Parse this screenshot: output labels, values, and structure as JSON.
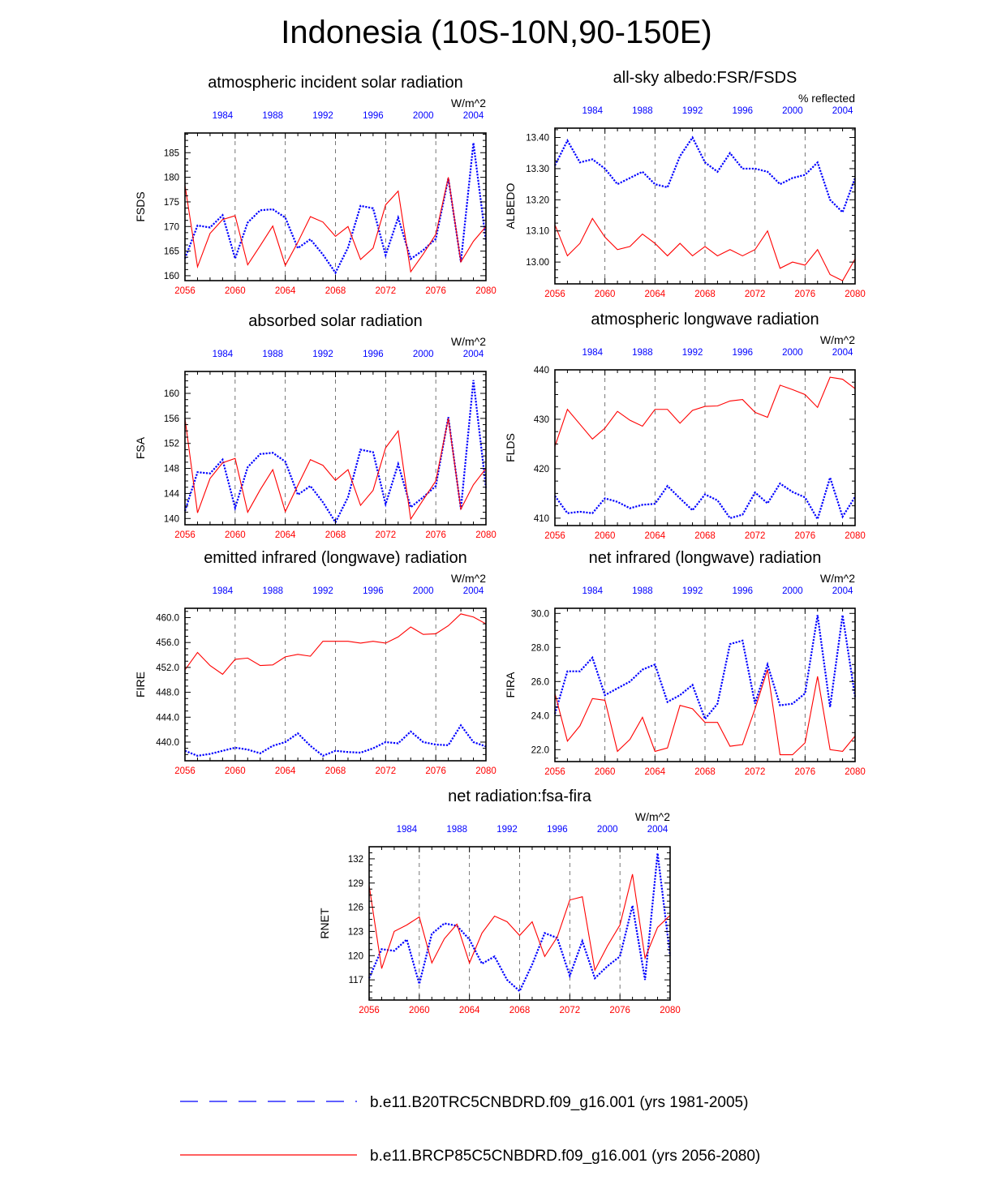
{
  "page": {
    "title": "Indonesia (10S-10N,90-150E)"
  },
  "colors": {
    "case1": "#0000ff",
    "case2": "#ff0000",
    "axis": "#000000",
    "grid": "#555555"
  },
  "legend": {
    "case1_label": "b.e11.B20TRC5CNBDRD.f09_g16.001 (yrs 1981-2005)",
    "case2_label": "b.e11.BRCP85C5CNBDRD.f09_g16.001 (yrs 2056-2080)"
  },
  "chart_data": [
    {
      "type": "line",
      "id": "fsds",
      "title": "atmospheric incident solar radiation",
      "ylabel": "FSDS",
      "units": "W/m^2",
      "ylim": [
        159,
        189
      ],
      "yticks": [
        160,
        165,
        170,
        175,
        180,
        185
      ],
      "ydecimals": 0,
      "xlim": [
        2056,
        2080
      ],
      "x_bottom_ticks": [
        "2056",
        "2060",
        "2064",
        "2068",
        "2072",
        "2076",
        "2080"
      ],
      "x_top_ticks": [
        "1984",
        "1988",
        "1992",
        "1996",
        "2000",
        "2004"
      ],
      "series": [
        {
          "name": "b.e11.B20TRC5CNBDRD.f09_g16.001 (yrs 1981-2005)",
          "years": "1981-2005",
          "values": [
            163.5,
            170.2,
            169.8,
            172.3,
            163.5,
            170.8,
            173.3,
            173.5,
            171.8,
            165.6,
            167.4,
            164.3,
            160.6,
            165.7,
            174.2,
            173.7,
            164.2,
            171.8,
            163.4,
            165.2,
            167.5,
            179.8,
            162.8,
            187.0,
            167.0
          ]
        },
        {
          "name": "b.e11.BRCP85C5CNBDRD.f09_g16.001 (yrs 2056-2080)",
          "years": "2056-2080",
          "values": [
            178.4,
            161.8,
            168.6,
            171.4,
            172.2,
            162.2,
            166.1,
            170.1,
            162.1,
            166.8,
            172.0,
            170.9,
            168.0,
            170.0,
            163.3,
            165.6,
            174.4,
            177.2,
            160.8,
            164.4,
            168.4,
            180.0,
            162.8,
            167.0,
            170.0
          ]
        }
      ]
    },
    {
      "type": "line",
      "id": "albedo",
      "title": "all-sky albedo:FSR/FSDS",
      "ylabel": "ALBEDO",
      "units": "% reflected",
      "ylim": [
        12.93,
        13.43
      ],
      "yticks": [
        13.0,
        13.1,
        13.2,
        13.3,
        13.4
      ],
      "ydecimals": 2,
      "xlim": [
        2056,
        2080
      ],
      "x_bottom_ticks": [
        "2056",
        "2060",
        "2064",
        "2068",
        "2072",
        "2076",
        "2080"
      ],
      "x_top_ticks": [
        "1984",
        "1988",
        "1992",
        "1996",
        "2000",
        "2004"
      ],
      "series": [
        {
          "name": "b.e11.B20TRC5CNBDRD.f09_g16.001 (yrs 1981-2005)",
          "years": "1981-2005",
          "values": [
            13.31,
            13.39,
            13.32,
            13.33,
            13.3,
            13.25,
            13.27,
            13.29,
            13.25,
            13.24,
            13.34,
            13.4,
            13.32,
            13.29,
            13.35,
            13.3,
            13.3,
            13.29,
            13.25,
            13.27,
            13.28,
            13.32,
            13.2,
            13.16,
            13.27
          ]
        },
        {
          "name": "b.e11.BRCP85C5CNBDRD.f09_g16.001 (yrs 2056-2080)",
          "years": "2056-2080",
          "values": [
            13.12,
            13.02,
            13.06,
            13.14,
            13.08,
            13.04,
            13.05,
            13.09,
            13.06,
            13.02,
            13.06,
            13.02,
            13.05,
            13.02,
            13.04,
            13.02,
            13.04,
            13.1,
            12.98,
            13.0,
            12.99,
            13.04,
            12.96,
            12.94,
            13.01
          ]
        }
      ]
    },
    {
      "type": "line",
      "id": "fsa",
      "title": "absorbed solar radiation",
      "ylabel": "FSA",
      "units": "W/m^2",
      "ylim": [
        139,
        163.5
      ],
      "yticks": [
        140,
        144,
        148,
        152,
        156,
        160
      ],
      "ydecimals": 0,
      "xlim": [
        2056,
        2080
      ],
      "x_bottom_ticks": [
        "2056",
        "2060",
        "2064",
        "2068",
        "2072",
        "2076",
        "2080"
      ],
      "x_top_ticks": [
        "1984",
        "1988",
        "1992",
        "1996",
        "2000",
        "2004"
      ],
      "series": [
        {
          "name": "b.e11.B20TRC5CNBDRD.f09_g16.001 (yrs 1981-2005)",
          "years": "1981-2005",
          "values": [
            141.2,
            147.4,
            147.2,
            149.4,
            141.7,
            148.2,
            150.3,
            150.5,
            149.1,
            143.8,
            145.2,
            142.6,
            139.4,
            143.4,
            151.0,
            150.6,
            142.3,
            148.7,
            141.8,
            143.4,
            145.2,
            156.2,
            141.5,
            162.1,
            144.9
          ]
        },
        {
          "name": "b.e11.BRCP85C5CNBDRD.f09_g16.001 (yrs 2056-2080)",
          "years": "2056-2080",
          "values": [
            156.0,
            140.9,
            146.4,
            148.9,
            149.6,
            141.0,
            144.6,
            147.8,
            141.1,
            145.3,
            149.4,
            148.5,
            146.1,
            147.8,
            142.1,
            144.5,
            151.3,
            154.0,
            139.9,
            143.0,
            146.0,
            156.0,
            141.5,
            145.4,
            148.0
          ]
        }
      ]
    },
    {
      "type": "line",
      "id": "flds",
      "title": "atmospheric longwave radiation",
      "ylabel": "FLDS",
      "units": "W/m^2",
      "ylim": [
        408.5,
        440
      ],
      "yticks": [
        410,
        420,
        430,
        440
      ],
      "ydecimals": 0,
      "xlim": [
        2056,
        2080
      ],
      "x_bottom_ticks": [
        "2056",
        "2060",
        "2064",
        "2068",
        "2072",
        "2076",
        "2080"
      ],
      "x_top_ticks": [
        "1984",
        "1988",
        "1992",
        "1996",
        "2000",
        "2004"
      ],
      "series": [
        {
          "name": "b.e11.B20TRC5CNBDRD.f09_g16.001 (yrs 1981-2005)",
          "years": "1981-2005",
          "values": [
            414.5,
            411.0,
            411.3,
            411.0,
            414.0,
            413.3,
            412.0,
            412.7,
            412.9,
            416.5,
            414.0,
            411.6,
            414.8,
            413.6,
            410.0,
            410.7,
            415.2,
            413.0,
            417.0,
            415.3,
            414.2,
            409.8,
            418.2,
            410.3,
            414.3
          ]
        },
        {
          "name": "b.e11.BRCP85C5CNBDRD.f09_g16.001 (yrs 2056-2080)",
          "years": "2056-2080",
          "values": [
            424.5,
            432.0,
            429.0,
            426.0,
            428.2,
            431.6,
            429.8,
            428.6,
            432.0,
            432.0,
            429.2,
            431.8,
            432.6,
            432.7,
            433.7,
            434.0,
            431.4,
            430.4,
            436.9,
            436.0,
            435.0,
            432.4,
            438.5,
            438.1,
            436.2
          ]
        }
      ]
    },
    {
      "type": "line",
      "id": "fire",
      "title": "emitted infrared (longwave) radiation",
      "ylabel": "FIRE",
      "units": "W/m^2",
      "ylim": [
        437,
        461.5
      ],
      "yticks": [
        440.0,
        444.0,
        448.0,
        452.0,
        456.0,
        460.0
      ],
      "ydecimals": 1,
      "xlim": [
        2056,
        2080
      ],
      "x_bottom_ticks": [
        "2056",
        "2060",
        "2064",
        "2068",
        "2072",
        "2076",
        "2080"
      ],
      "x_top_ticks": [
        "1984",
        "1988",
        "1992",
        "1996",
        "2000",
        "2004"
      ],
      "series": [
        {
          "name": "b.e11.B20TRC5CNBDRD.f09_g16.001 (yrs 1981-2005)",
          "years": "1981-2005",
          "values": [
            438.6,
            437.8,
            438.1,
            438.6,
            439.1,
            438.8,
            438.2,
            439.4,
            440.0,
            441.4,
            439.4,
            437.8,
            438.6,
            438.4,
            438.3,
            439.0,
            440.0,
            439.8,
            441.7,
            440.0,
            439.6,
            439.5,
            442.7,
            440.0,
            439.3
          ]
        },
        {
          "name": "b.e11.BRCP85C5CNBDRD.f09_g16.001 (yrs 2056-2080)",
          "years": "2056-2080",
          "values": [
            451.6,
            454.4,
            452.3,
            450.9,
            453.3,
            453.5,
            452.3,
            452.4,
            453.7,
            454.1,
            453.8,
            456.2,
            456.2,
            456.2,
            455.9,
            456.2,
            455.9,
            456.9,
            458.5,
            457.3,
            457.4,
            458.7,
            460.6,
            460.1,
            459.0
          ]
        }
      ]
    },
    {
      "type": "line",
      "id": "fira",
      "title": "net infrared (longwave) radiation",
      "ylabel": "FIRA",
      "units": "W/m^2",
      "ylim": [
        21.3,
        30.3
      ],
      "yticks": [
        22.0,
        24.0,
        26.0,
        28.0,
        30.0
      ],
      "ydecimals": 1,
      "xlim": [
        2056,
        2080
      ],
      "x_bottom_ticks": [
        "2056",
        "2060",
        "2064",
        "2068",
        "2072",
        "2076",
        "2080"
      ],
      "x_top_ticks": [
        "1984",
        "1988",
        "1992",
        "1996",
        "2000",
        "2004"
      ],
      "series": [
        {
          "name": "b.e11.B20TRC5CNBDRD.f09_g16.001 (yrs 1981-2005)",
          "years": "1981-2005",
          "values": [
            24.1,
            26.6,
            26.6,
            27.4,
            25.2,
            25.6,
            26.0,
            26.7,
            27.0,
            24.8,
            25.2,
            25.8,
            23.8,
            24.7,
            28.2,
            28.4,
            24.7,
            27.0,
            24.6,
            24.7,
            25.3,
            29.9,
            24.5,
            29.9,
            25.1
          ]
        },
        {
          "name": "b.e11.BRCP85C5CNBDRD.f09_g16.001 (yrs 2056-2080)",
          "years": "2056-2080",
          "values": [
            25.3,
            22.5,
            23.4,
            25.0,
            24.9,
            21.9,
            22.6,
            23.9,
            21.9,
            22.1,
            24.6,
            24.4,
            23.6,
            23.6,
            22.2,
            22.3,
            24.4,
            26.7,
            21.7,
            21.7,
            22.4,
            26.3,
            22.0,
            21.9,
            22.8
          ]
        }
      ]
    },
    {
      "type": "line",
      "id": "rnet",
      "title": "net radiation:fsa-fira",
      "ylabel": "RNET",
      "units": "W/m^2",
      "ylim": [
        114.5,
        133.5
      ],
      "yticks": [
        117,
        120,
        123,
        126,
        129,
        132
      ],
      "ydecimals": 0,
      "xlim": [
        2056,
        2080
      ],
      "x_bottom_ticks": [
        "2056",
        "2060",
        "2064",
        "2068",
        "2072",
        "2076",
        "2080"
      ],
      "x_top_ticks": [
        "1984",
        "1988",
        "1992",
        "1996",
        "2000",
        "2004"
      ],
      "series": [
        {
          "name": "b.e11.B20TRC5CNBDRD.f09_g16.001 (yrs 1981-2005)",
          "years": "1981-2005",
          "values": [
            117.2,
            120.8,
            120.6,
            122.0,
            116.5,
            122.7,
            124.0,
            123.7,
            122.0,
            119.0,
            119.9,
            117.0,
            115.6,
            118.9,
            122.8,
            122.2,
            117.5,
            121.8,
            117.2,
            118.7,
            119.9,
            126.2,
            117.0,
            132.7,
            120.0
          ]
        },
        {
          "name": "b.e11.BRCP85C5CNBDRD.f09_g16.001 (yrs 2056-2080)",
          "years": "2056-2080",
          "values": [
            128.7,
            118.4,
            123.0,
            123.8,
            124.8,
            119.1,
            122.1,
            123.9,
            119.1,
            122.8,
            124.9,
            124.2,
            122.5,
            124.2,
            119.9,
            122.3,
            126.9,
            127.3,
            118.2,
            121.2,
            123.8,
            130.1,
            119.7,
            123.5,
            125.0
          ]
        }
      ]
    }
  ]
}
